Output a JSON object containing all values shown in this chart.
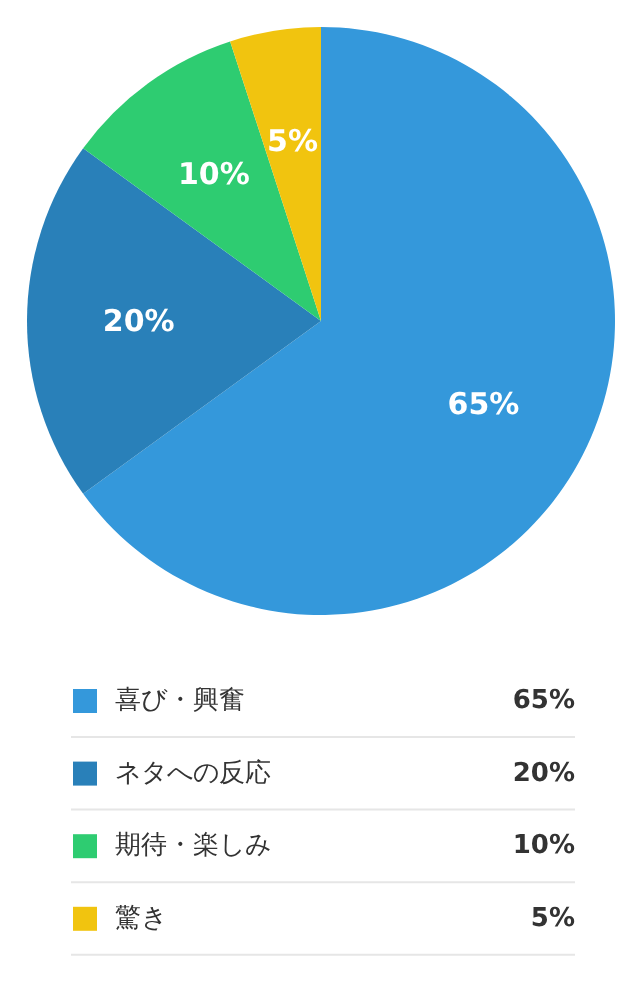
{
  "chart_data": {
    "type": "pie",
    "categories": [
      "喜び・興奮",
      "ネタへの反応",
      "期待・楽しみ",
      "驚き"
    ],
    "values": [
      65,
      20,
      10,
      5
    ],
    "value_labels": [
      "65%",
      "20%",
      "10%",
      "5%"
    ],
    "colors": [
      "#3498db",
      "#2980b9",
      "#2ecc71",
      "#f1c40f"
    ],
    "legend": "bottom"
  }
}
